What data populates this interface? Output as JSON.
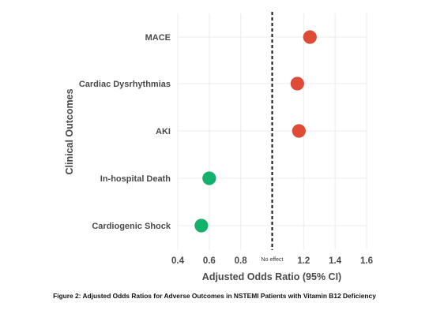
{
  "chart_data": {
    "type": "scatter",
    "categories": [
      "MACE",
      "Cardiac Dysrhythmias",
      "AKI",
      "In-hospital Death",
      "Cardiogenic Shock"
    ],
    "values": [
      1.24,
      1.16,
      1.17,
      0.6,
      0.55
    ],
    "point_colors": [
      "#e04b36",
      "#e04b36",
      "#e04b36",
      "#13b26a",
      "#13b26a"
    ],
    "xlabel": "Adjusted Odds Ratio (95% CI)",
    "ylabel": "Clinical Outcomes",
    "xlim": [
      0.4,
      1.6
    ],
    "xticks": [
      "0.4",
      "0.6",
      "0.8",
      "No effect",
      "1.2",
      "1.4",
      "1.6"
    ],
    "reference_line": {
      "x": 1.0,
      "style": "dashed"
    },
    "grid": true
  },
  "caption": "Figure 2: Adjusted Odds Ratios for Adverse Outcomes in NSTEMI Patients with Vitamin B12 Deficiency"
}
